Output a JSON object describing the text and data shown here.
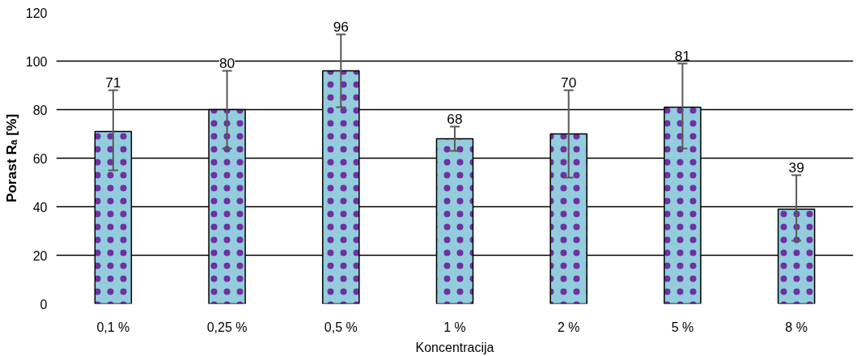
{
  "chart_data": {
    "type": "bar",
    "xlabel": "Koncentracija",
    "ylabel": "Porast Rₐ [%]",
    "categories": [
      "0,1 %",
      "0,25 %",
      "0,5 %",
      "1 %",
      "2 %",
      "5 %",
      "8 %"
    ],
    "values": [
      71,
      80,
      96,
      68,
      70,
      81,
      39
    ],
    "errors": [
      [
        55,
        88
      ],
      [
        64,
        96
      ],
      [
        81,
        111
      ],
      [
        63,
        73
      ],
      [
        52,
        88
      ],
      [
        64,
        99
      ],
      [
        26,
        53
      ]
    ],
    "color": "#93cddd",
    "data_labels": true,
    "ylim": [
      0,
      120
    ],
    "yticks": [
      0,
      20,
      40,
      60,
      80,
      100,
      120
    ],
    "grid": "y"
  }
}
